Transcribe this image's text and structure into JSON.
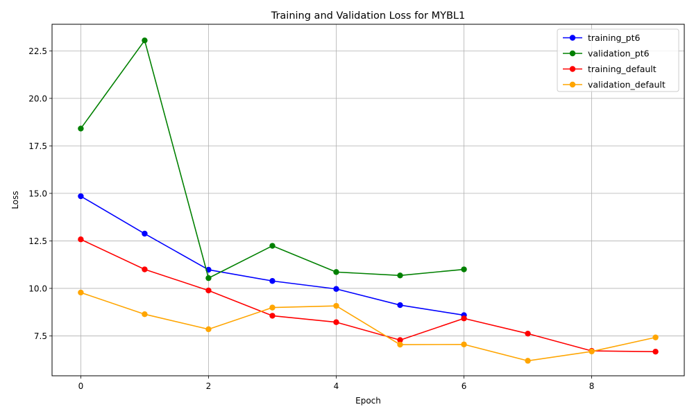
{
  "chart_data": {
    "type": "line",
    "title": "Training and Validation Loss for MYBL1",
    "xlabel": "Epoch",
    "ylabel": "Loss",
    "xlim": [
      -0.45,
      9.45
    ],
    "ylim": [
      5.4,
      23.9
    ],
    "xticks": [
      0,
      2,
      4,
      6,
      8
    ],
    "yticks": [
      7.5,
      10.0,
      12.5,
      15.0,
      17.5,
      20.0,
      22.5
    ],
    "ytick_labels": [
      "7.5",
      "10.0",
      "12.5",
      "15.0",
      "17.5",
      "20.0",
      "22.5"
    ],
    "grid": true,
    "legend_position": "top-right",
    "series": [
      {
        "name": "training_pt6",
        "color": "#0000ff",
        "x": [
          0,
          1,
          2,
          3,
          4,
          5,
          6
        ],
        "values": [
          14.85,
          12.88,
          10.98,
          10.39,
          9.97,
          9.12,
          8.59
        ]
      },
      {
        "name": "validation_pt6",
        "color": "#008000",
        "x": [
          0,
          1,
          2,
          3,
          4,
          5,
          6
        ],
        "values": [
          18.41,
          23.05,
          10.54,
          12.24,
          10.86,
          10.68,
          11.0
        ]
      },
      {
        "name": "training_default",
        "color": "#ff0000",
        "x": [
          0,
          1,
          2,
          3,
          4,
          5,
          6,
          7,
          8,
          9
        ],
        "values": [
          12.58,
          11.0,
          9.89,
          8.56,
          8.22,
          7.28,
          8.42,
          7.62,
          6.71,
          6.67
        ]
      },
      {
        "name": "validation_default",
        "color": "#ffa500",
        "x": [
          0,
          1,
          2,
          3,
          4,
          5,
          6,
          7,
          8,
          9
        ],
        "values": [
          9.78,
          8.64,
          7.85,
          8.99,
          9.08,
          7.04,
          7.05,
          6.19,
          6.68,
          7.42
        ]
      }
    ]
  }
}
